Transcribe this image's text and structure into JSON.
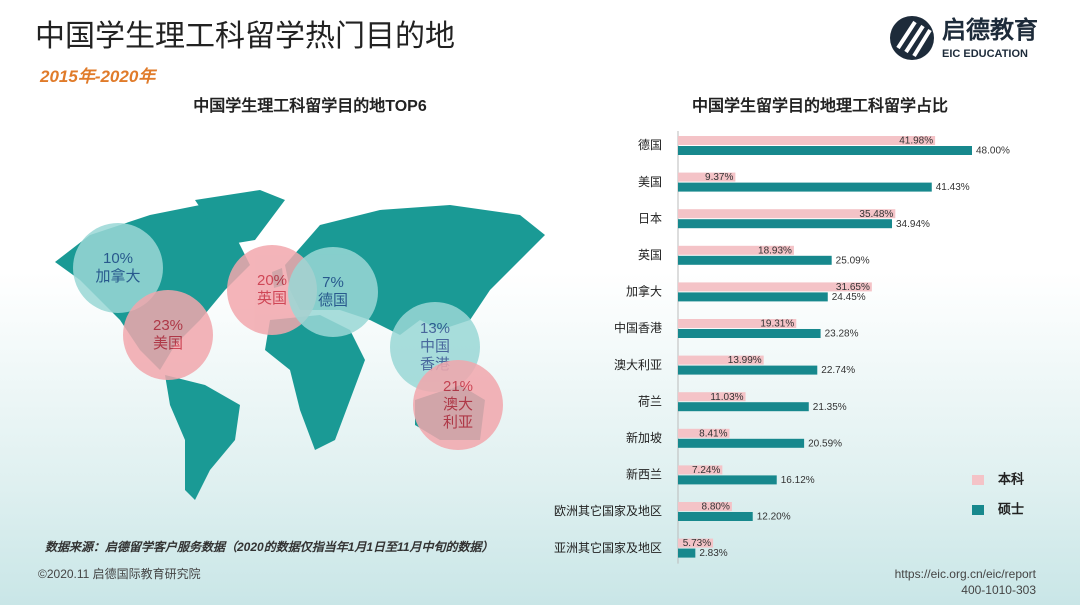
{
  "header": {
    "title": "中国学生理工科留学热门目的地",
    "subtitle": "2015年-2020年"
  },
  "logo": {
    "name": "启德教育",
    "sub": "EIC EDUCATION"
  },
  "chart_data": [
    {
      "type": "bubble-map",
      "title": "中国学生理工科留学目的地TOP6",
      "categories": [
        "加拿大",
        "美国",
        "英国",
        "德国",
        "中国香港",
        "澳大利亚"
      ],
      "values": [
        10,
        23,
        20,
        7,
        13,
        21
      ],
      "value_labels": [
        "10%",
        "23%",
        "20%",
        "7%",
        "13%",
        "21%"
      ],
      "colors": [
        "#9ad8d6",
        "#f2a7ad",
        "#f2a7ad",
        "#9ad8d6",
        "#9ad8d6",
        "#f2a7ad"
      ],
      "map_color": "#1a9a95"
    },
    {
      "type": "hbar",
      "title": "中国学生留学目的地理工科留学占比",
      "categories": [
        "德国",
        "美国",
        "日本",
        "英国",
        "加拿大",
        "中国香港",
        "澳大利亚",
        "荷兰",
        "新加坡",
        "新西兰",
        "欧洲其它国家及地区",
        "亚洲其它国家及地区"
      ],
      "series": [
        {
          "name": "本科",
          "color": "#f4c3c7",
          "values": [
            41.98,
            9.37,
            35.48,
            18.93,
            31.65,
            19.31,
            13.99,
            11.03,
            8.41,
            7.24,
            8.8,
            5.73
          ],
          "value_labels": [
            "41.98%",
            "9.37%",
            "35.48%",
            "18.93%",
            "31.65%",
            "19.31%",
            "13.99%",
            "11.03%",
            "8.41%",
            "7.24%",
            "8.80%",
            "5.73%"
          ]
        },
        {
          "name": "硕士",
          "color": "#17888d",
          "values": [
            48.0,
            41.43,
            34.94,
            25.09,
            24.45,
            23.28,
            22.74,
            21.35,
            20.59,
            16.12,
            12.2,
            2.83
          ],
          "value_labels": [
            "48.00%",
            "41.43%",
            "34.94%",
            "25.09%",
            "24.45%",
            "23.28%",
            "22.74%",
            "21.35%",
            "20.59%",
            "16.12%",
            "12.20%",
            "2.83%"
          ]
        }
      ],
      "legend": "bottom-right"
    }
  ],
  "source": "数据来源：启德留学客户服务数据（2020的数据仅指当年1月1日至11月中旬的数据）",
  "footer": {
    "copyright": "©2020.11 启德国际教育研究院",
    "url": "https://eic.org.cn/eic/report",
    "phone": "400-1010-303"
  }
}
